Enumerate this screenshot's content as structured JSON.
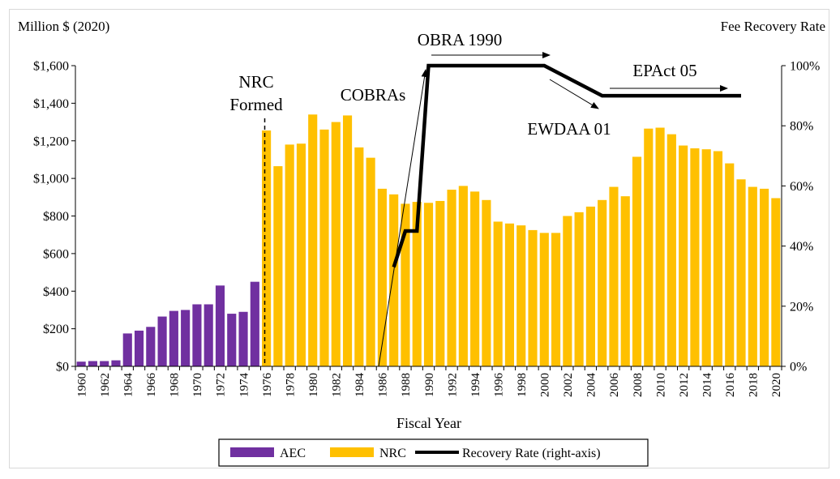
{
  "chart_data": {
    "type": "bar",
    "title": "",
    "xlabel": "Fiscal Year",
    "ylabel_left": "Million $ (2020)",
    "ylabel_right": "Fee Recovery Rate",
    "ylim_left": [
      0,
      1600
    ],
    "ylim_right": [
      0,
      100
    ],
    "yticks_left": [
      "$0",
      "$200",
      "$400",
      "$600",
      "$800",
      "$1,000",
      "$1,200",
      "$1,400",
      "$1,600"
    ],
    "yticks_right": [
      "0%",
      "20%",
      "40%",
      "60%",
      "80%",
      "100%"
    ],
    "x_tick_labels": [
      "1960",
      "1962",
      "1964",
      "1966",
      "1968",
      "1970",
      "1972",
      "1974",
      "1976",
      "1978",
      "1980",
      "1982",
      "1984",
      "1986",
      "1988",
      "1990",
      "1992",
      "1994",
      "1996",
      "1998",
      "2000",
      "2002",
      "2004",
      "2006",
      "2008",
      "2010",
      "2012",
      "2014",
      "2016",
      "2018",
      "2020"
    ],
    "years": [
      1960,
      1961,
      1962,
      1963,
      1964,
      1965,
      1966,
      1967,
      1968,
      1969,
      1970,
      1971,
      1972,
      1973,
      1974,
      1975,
      1976,
      1977,
      1978,
      1979,
      1980,
      1981,
      1982,
      1983,
      1984,
      1985,
      1986,
      1987,
      1988,
      1989,
      1990,
      1991,
      1992,
      1993,
      1994,
      1995,
      1996,
      1997,
      1998,
      1999,
      2000,
      2001,
      2002,
      2003,
      2004,
      2005,
      2006,
      2007,
      2008,
      2009,
      2010,
      2011,
      2012,
      2013,
      2014,
      2015,
      2016,
      2017,
      2018,
      2019,
      2020
    ],
    "series": [
      {
        "name": "AEC",
        "color": "#7030a0",
        "start_year": 1960,
        "values": [
          25,
          28,
          28,
          32,
          175,
          190,
          210,
          265,
          295,
          300,
          330,
          330,
          430,
          280,
          290,
          450
        ]
      },
      {
        "name": "NRC",
        "color": "#ffc000",
        "start_year": 1976,
        "values": [
          1255,
          1065,
          1180,
          1185,
          1340,
          1260,
          1300,
          1335,
          1165,
          1110,
          945,
          915,
          865,
          875,
          870,
          880,
          940,
          960,
          930,
          885,
          770,
          760,
          750,
          725,
          710,
          710,
          800,
          820,
          850,
          885,
          955,
          905,
          1115,
          1265,
          1270,
          1235,
          1175,
          1160,
          1155,
          1145,
          1080,
          995,
          955,
          945,
          895
        ]
      },
      {
        "name": "Recovery Rate (right-axis)",
        "color": "#000000",
        "axis": "right",
        "points": [
          [
            1987,
            33
          ],
          [
            1988,
            45
          ],
          [
            1989,
            45
          ],
          [
            1990,
            100
          ],
          [
            2000,
            100
          ],
          [
            2005,
            90
          ],
          [
            2017,
            90
          ]
        ]
      }
    ],
    "legend_position": "bottom-center",
    "annotations": [
      {
        "id": "nrc_formed_1",
        "text": "NRC"
      },
      {
        "id": "nrc_formed_2",
        "text": "Formed"
      },
      {
        "id": "cobras",
        "text": "COBRAs"
      },
      {
        "id": "obra",
        "text": "OBRA 1990"
      },
      {
        "id": "ewdaa",
        "text": "EWDAA 01"
      },
      {
        "id": "epact",
        "text": "EPAct 05"
      }
    ],
    "grid": false
  }
}
